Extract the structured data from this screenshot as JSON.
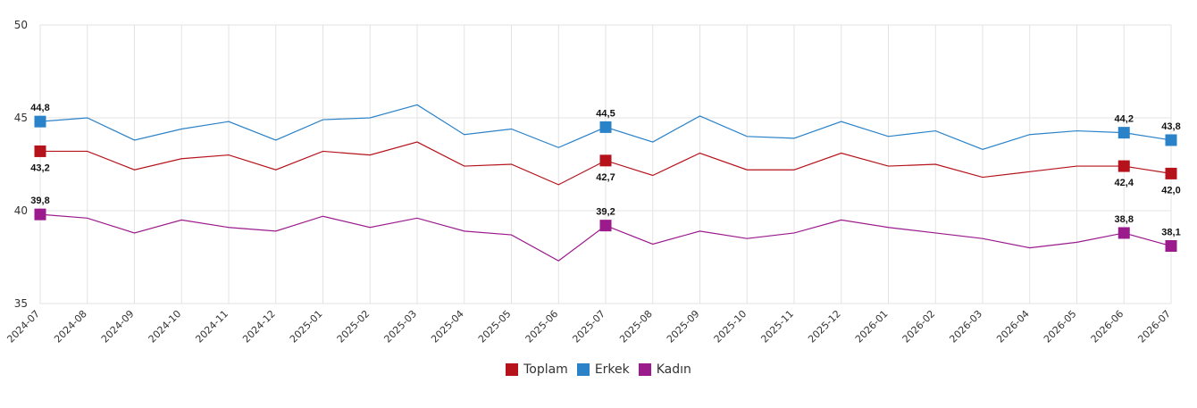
{
  "chart_data": {
    "type": "line",
    "title": "",
    "xlabel": "",
    "ylabel": "",
    "ylim": [
      35,
      50
    ],
    "yticks": [
      35,
      40,
      45,
      50
    ],
    "grid": true,
    "legend_position": "bottom-center",
    "categories": [
      "2024-07",
      "2024-08",
      "2024-09",
      "2024-10",
      "2024-11",
      "2024-12",
      "2025-01",
      "2025-02",
      "2025-03",
      "2025-04",
      "2025-05",
      "2025-06",
      "2025-07",
      "2025-08",
      "2025-09",
      "2025-10",
      "2025-11",
      "2025-12",
      "2026-01",
      "2026-02",
      "2026-03",
      "2026-04",
      "2026-05",
      "2026-06",
      "2026-07"
    ],
    "series": [
      {
        "name": "Toplam",
        "color": "#b5121b",
        "values": [
          43.2,
          43.2,
          42.2,
          42.8,
          43.0,
          42.2,
          43.2,
          43.0,
          43.7,
          42.4,
          42.5,
          41.4,
          42.7,
          41.9,
          43.1,
          42.2,
          42.2,
          43.1,
          42.4,
          42.5,
          41.8,
          42.1,
          42.4,
          42.4,
          42.0
        ],
        "labeled_points": [
          0,
          12,
          23,
          24
        ],
        "label_texts": [
          "43,2",
          "42,7",
          "42,4",
          "42,0"
        ]
      },
      {
        "name": "Erkek",
        "color": "#2a82c8",
        "values": [
          44.8,
          45.0,
          43.8,
          44.4,
          44.8,
          43.8,
          44.9,
          45.0,
          45.7,
          44.1,
          44.4,
          43.4,
          44.5,
          43.7,
          45.1,
          44.0,
          43.9,
          44.8,
          44.0,
          44.3,
          43.3,
          44.1,
          44.3,
          44.2,
          43.8
        ],
        "labeled_points": [
          0,
          12,
          23,
          24
        ],
        "label_texts": [
          "44,8",
          "44,5",
          "44,2",
          "43,8"
        ]
      },
      {
        "name": "Kadın",
        "color": "#9b1a8c",
        "values": [
          39.8,
          39.6,
          38.8,
          39.5,
          39.1,
          38.9,
          39.7,
          39.1,
          39.6,
          38.9,
          38.7,
          37.3,
          39.2,
          38.2,
          38.9,
          38.5,
          38.8,
          39.5,
          39.1,
          38.8,
          38.5,
          38.0,
          38.3,
          38.8,
          38.1
        ],
        "labeled_points": [
          0,
          12,
          23,
          24
        ],
        "label_texts": [
          "39,8",
          "39,2",
          "38,8",
          "38,1"
        ]
      }
    ]
  }
}
